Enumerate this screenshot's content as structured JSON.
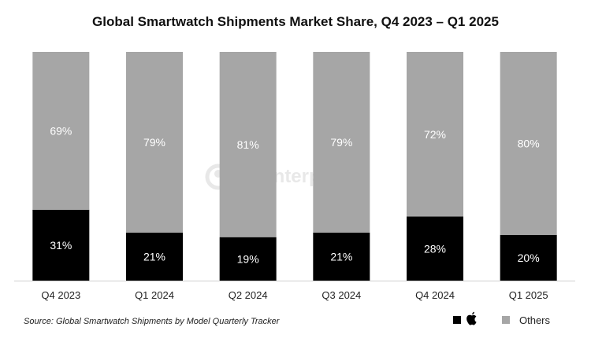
{
  "chart_data": {
    "type": "bar",
    "stacked": true,
    "title": "Global Smartwatch Shipments Market Share, Q4 2023 – Q1 2025",
    "categories": [
      "Q4 2023",
      "Q1 2024",
      "Q2 2024",
      "Q3 2024",
      "Q4 2024",
      "Q1 2025"
    ],
    "series": [
      {
        "name": "Apple",
        "color": "#000000",
        "label_color": "#ffffff",
        "values": [
          31,
          21,
          19,
          21,
          28,
          20
        ]
      },
      {
        "name": "Others",
        "color": "#a6a6a6",
        "label_color": "#ffffff",
        "values": [
          69,
          79,
          81,
          79,
          72,
          80
        ]
      }
    ],
    "unit": "%",
    "ylim": [
      0,
      100
    ],
    "xlabel": "",
    "ylabel": "",
    "grid": false,
    "legend_position": "bottom-right",
    "legend": {
      "others_label": "Others"
    }
  },
  "source": "Source: Global Smartwatch Shipments by Model Quarterly Tracker",
  "watermark": "Counterpoint",
  "icons": {
    "apple_legend": "apple-logo-icon",
    "watermark": "counterpoint-logo-icon"
  }
}
